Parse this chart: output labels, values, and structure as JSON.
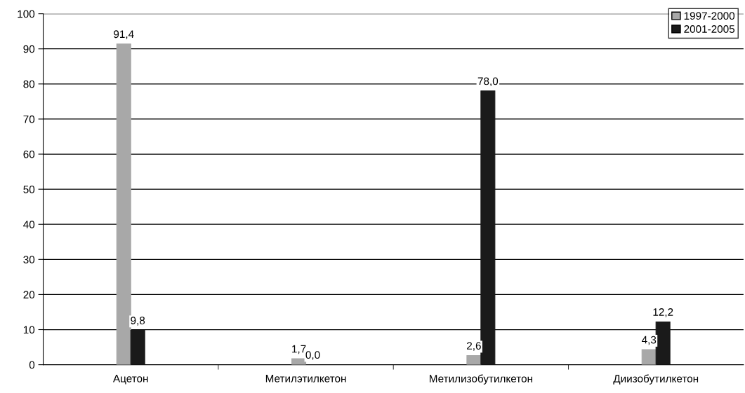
{
  "chart_data": {
    "type": "bar",
    "categories": [
      "Ацетон",
      "Метилэтилкетон",
      "Метилизобутилкетон",
      "Диизобутилкетон"
    ],
    "series": [
      {
        "name": "1997-2000",
        "color": "#a8a8a8",
        "values": [
          91.4,
          1.7,
          2.6,
          4.3
        ],
        "value_labels": [
          "91,4",
          "1,7",
          "2,6",
          "4,3"
        ]
      },
      {
        "name": "2001-2005",
        "color": "#1a1a1a",
        "values": [
          9.8,
          0.0,
          78.0,
          12.2
        ],
        "value_labels": [
          "9,8",
          "0,0",
          "78,0",
          "12,2"
        ]
      }
    ],
    "ylim": [
      0,
      100
    ],
    "yticks": [
      0,
      10,
      20,
      30,
      40,
      50,
      60,
      70,
      80,
      90,
      100
    ],
    "grid": "y",
    "legend": "top right"
  }
}
